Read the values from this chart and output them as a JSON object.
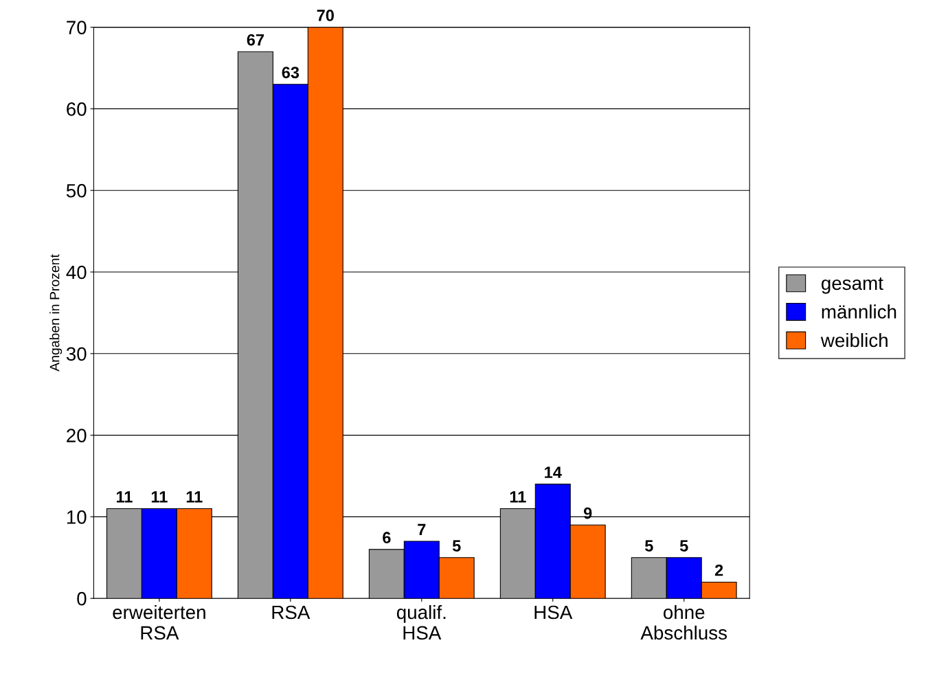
{
  "chart_data": {
    "type": "bar",
    "ylabel": "Angaben in Prozent",
    "categories": [
      "erweiterten\nRSA",
      "RSA",
      "qualif.\nHSA",
      "HSA",
      "ohne\nAbschluss"
    ],
    "series": [
      {
        "name": "gesamt",
        "color": "#999999",
        "values": [
          11,
          67,
          6,
          11,
          5
        ]
      },
      {
        "name": "männlich",
        "color": "#0000ff",
        "values": [
          11,
          63,
          7,
          14,
          5
        ]
      },
      {
        "name": "weiblich",
        "color": "#ff6600",
        "values": [
          11,
          70,
          5,
          9,
          2
        ]
      }
    ],
    "ylim": [
      0,
      70
    ],
    "yticks": [
      0,
      10,
      20,
      30,
      40,
      50,
      60,
      70
    ],
    "grid": "y",
    "legend": "right",
    "data_labels": true
  }
}
